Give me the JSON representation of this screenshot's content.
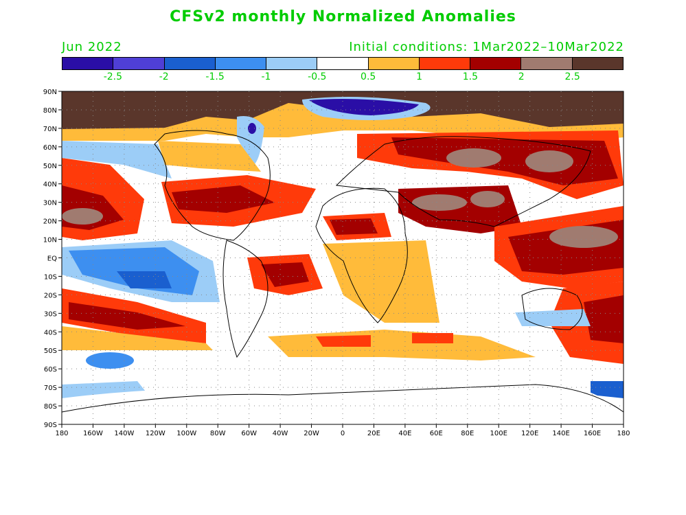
{
  "title": "CFSv2 monthly Normalized Anomalies",
  "month_label": "Jun 2022",
  "init_label": "Initial conditions: 1Mar2022–10Mar2022",
  "legend": {
    "colors": [
      "#2a0ea6",
      "#4f3fd6",
      "#1a5fcf",
      "#3d8ff0",
      "#9ccdf7",
      "#ffffff",
      "#ffbb3a",
      "#ff3a0a",
      "#a30000",
      "#a07b70",
      "#5a362b"
    ],
    "labels": [
      "-2.5",
      "-2",
      "-1.5",
      "-1",
      "-0.5",
      "0.5",
      "1",
      "1.5",
      "2",
      "2.5"
    ]
  },
  "axes": {
    "lat_labels": [
      "90N",
      "80N",
      "70N",
      "60N",
      "50N",
      "40N",
      "30N",
      "20N",
      "10N",
      "EQ",
      "10S",
      "20S",
      "30S",
      "40S",
      "50S",
      "60S",
      "70S",
      "80S",
      "90S"
    ],
    "lon_labels": [
      "180",
      "160W",
      "140W",
      "120W",
      "100W",
      "80W",
      "60W",
      "40W",
      "20W",
      "0",
      "20E",
      "40E",
      "60E",
      "80E",
      "100E",
      "120E",
      "140E",
      "160E",
      "180"
    ]
  }
}
